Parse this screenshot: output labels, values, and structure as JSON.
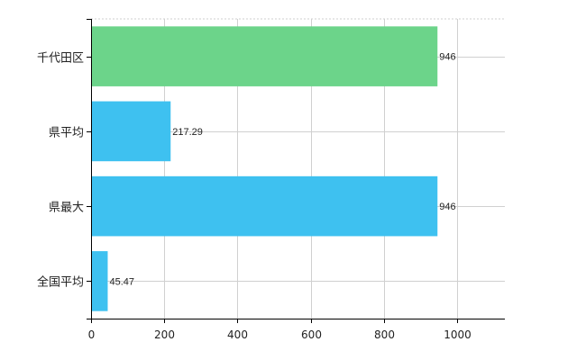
{
  "chart_data": {
    "type": "bar",
    "orientation": "horizontal",
    "categories": [
      "千代田区",
      "県平均",
      "県最大",
      "全国平均"
    ],
    "values": [
      946,
      217.29,
      946,
      45.47
    ],
    "data_labels": [
      "946",
      "217.29",
      "946",
      "45.47"
    ],
    "bar_colors": [
      "#6cd48a",
      "#3ec1f0",
      "#3ec1f0",
      "#3ec1f0"
    ],
    "xlim": [
      0,
      1130
    ],
    "xticks": [
      0,
      200,
      400,
      600,
      800,
      1000
    ],
    "xtick_labels": [
      "0",
      "200",
      "400",
      "600",
      "800",
      "1000"
    ],
    "grid": true,
    "title": "",
    "xlabel": "",
    "ylabel": ""
  }
}
